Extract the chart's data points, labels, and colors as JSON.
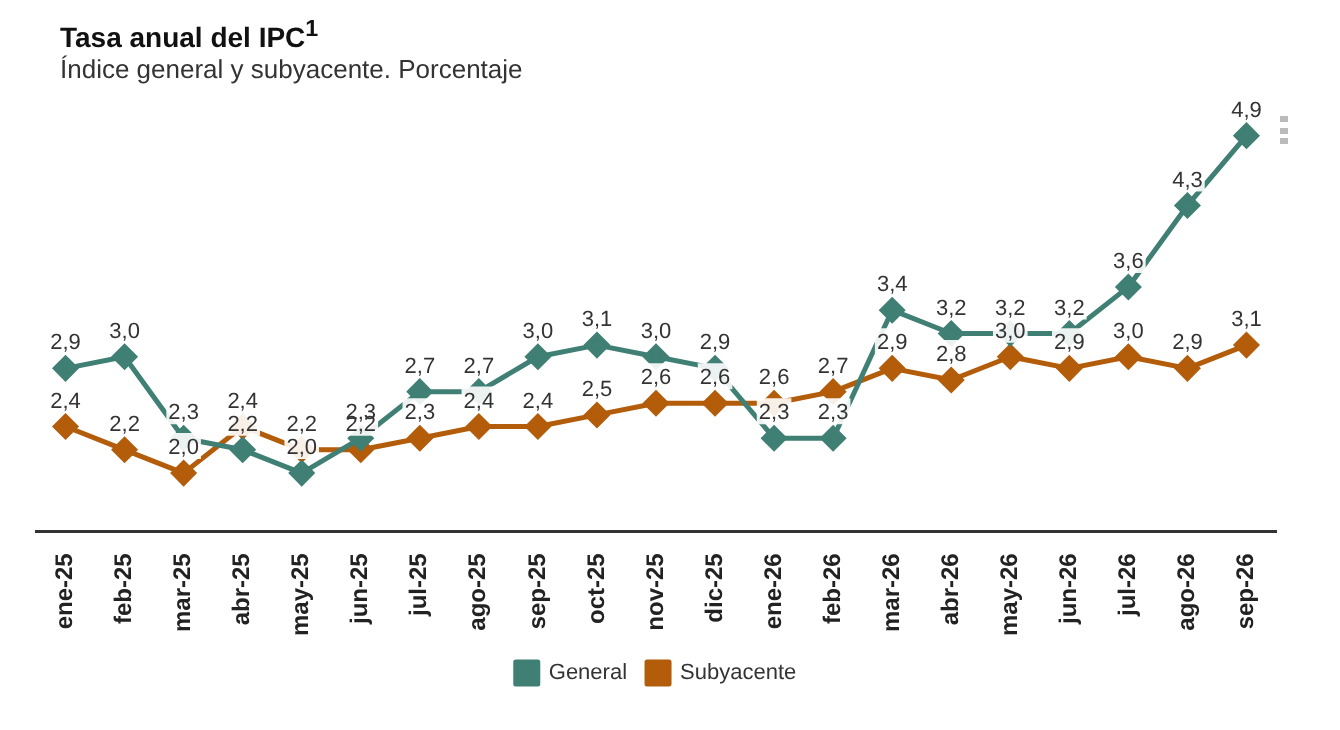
{
  "chart_data": {
    "type": "line",
    "title": "Tasa anual del IPC$^{1}$",
    "subtitle": "Índice general y subyacente. Porcentaje",
    "categories": [
      "ene-25",
      "feb-25",
      "mar-25",
      "abr-25",
      "may-25",
      "jun-25",
      "jul-25",
      "ago-25",
      "sep-25",
      "oct-25",
      "nov-25",
      "dic-25",
      "ene-26",
      "feb-26",
      "mar-26",
      "abr-26",
      "may-26",
      "jun-26",
      "jul-26",
      "ago-26",
      "sep-26"
    ],
    "series": [
      {
        "name": "General",
        "color": "#3f7f74",
        "values": [
          2.9,
          3.0,
          2.3,
          2.2,
          2.0,
          2.3,
          2.7,
          2.7,
          3.0,
          3.1,
          3.0,
          2.9,
          2.3,
          2.3,
          3.4,
          3.2,
          3.2,
          3.2,
          3.6,
          4.3,
          4.9
        ],
        "value_labels": [
          "2,9",
          "3,0",
          "2,3",
          "2,2",
          "2,0",
          "2,3",
          "2,7",
          "2,7",
          "3,0",
          "3,1",
          "3,0",
          "2,9",
          "2,3",
          "2,3",
          "3,4",
          "3,2",
          "3,2",
          "3,2",
          "3,6",
          "4,3",
          "4,9"
        ]
      },
      {
        "name": "Subyacente",
        "color": "#b35c0a",
        "values": [
          2.4,
          2.2,
          2.0,
          2.4,
          2.2,
          2.2,
          2.3,
          2.4,
          2.4,
          2.5,
          2.6,
          2.6,
          2.6,
          2.7,
          2.9,
          2.8,
          3.0,
          2.9,
          3.0,
          2.9,
          3.1
        ],
        "value_labels": [
          "2,4",
          "2,2",
          "2,0",
          "2,4",
          "2,2",
          "2,2",
          "2,3",
          "2,4",
          "2,4",
          "2,5",
          "2,6",
          "2,6",
          "2,6",
          "2,7",
          "2,9",
          "2,8",
          "3,0",
          "2,9",
          "3,0",
          "2,9",
          "3,1"
        ]
      }
    ],
    "marker": "diamond",
    "line_style": "solid",
    "legend": "bottom",
    "grid": false,
    "tick_labels": "x"
  }
}
